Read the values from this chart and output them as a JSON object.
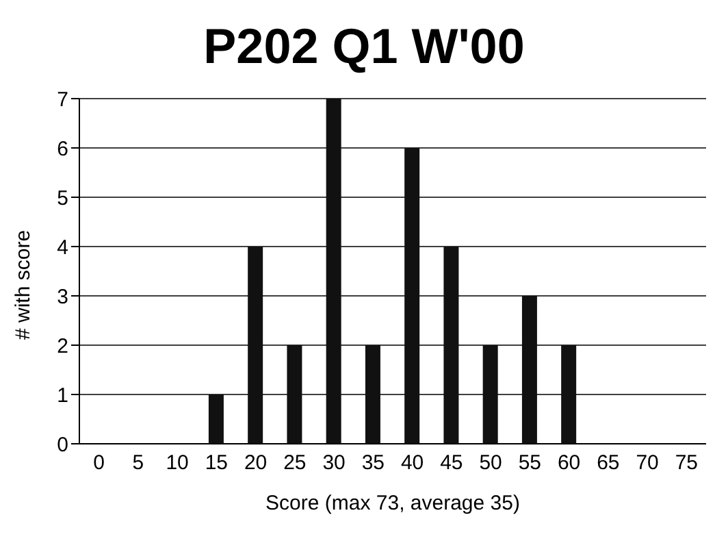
{
  "chart_data": {
    "type": "bar",
    "title": "P202 Q1  W'00",
    "xlabel": "Score (max 73, average  35)",
    "ylabel": "# with score",
    "categories": [
      "0",
      "5",
      "10",
      "15",
      "20",
      "25",
      "30",
      "35",
      "40",
      "45",
      "50",
      "55",
      "60",
      "65",
      "70",
      "75"
    ],
    "values": [
      0,
      0,
      0,
      1,
      4,
      2,
      7,
      2,
      6,
      4,
      2,
      3,
      2,
      0,
      0,
      0
    ],
    "color": "#111111",
    "ylim": [
      0,
      7
    ],
    "yticks": [
      0,
      1,
      2,
      3,
      4,
      5,
      6,
      7
    ],
    "grid": "y"
  }
}
